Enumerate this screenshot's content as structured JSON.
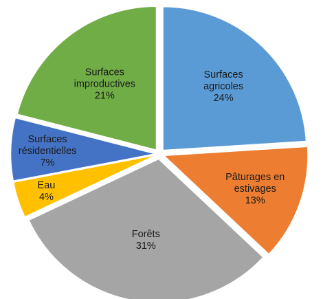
{
  "chart_data": {
    "type": "pie",
    "title": "",
    "slices": [
      {
        "label_lines": [
          "Surfaces",
          "agricoles"
        ],
        "value": 24,
        "value_label": "24%",
        "color": "#5b9bd5"
      },
      {
        "label_lines": [
          "Pâturages en",
          "estivages"
        ],
        "value": 13,
        "value_label": "13%",
        "color": "#ed7d31"
      },
      {
        "label_lines": [
          "Forêts"
        ],
        "value": 31,
        "value_label": "31%",
        "color": "#a5a5a5"
      },
      {
        "label_lines": [
          "Eau"
        ],
        "value": 4,
        "value_label": "4%",
        "color": "#ffc000"
      },
      {
        "label_lines": [
          "Surfaces",
          "résidentielles"
        ],
        "value": 7,
        "value_label": "7%",
        "color": "#4472c4"
      },
      {
        "label_lines": [
          "Surfaces",
          "improductives"
        ],
        "value": 21,
        "value_label": "21%",
        "color": "#70ad47"
      }
    ],
    "start_angle": "12 o'clock",
    "direction": "clockwise",
    "exploded": true,
    "legend": "none"
  }
}
